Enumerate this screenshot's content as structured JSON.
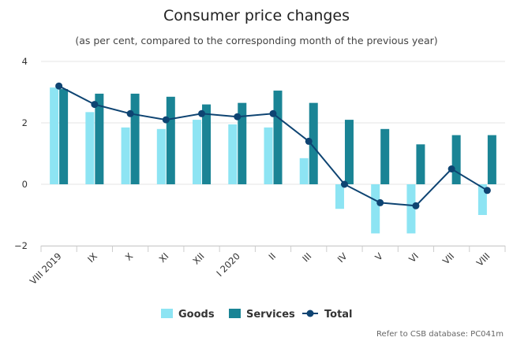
{
  "chart_data": {
    "type": "bar",
    "title": "Consumer price changes",
    "subtitle": "(as per cent, compared to the corresponding month of the previous year)",
    "categories": [
      "VIII 2019",
      "IX",
      "X",
      "XI",
      "XII",
      "I 2020",
      "II",
      "III",
      "IV",
      "V",
      "VI",
      "VII",
      "VIII"
    ],
    "series": [
      {
        "name": "Goods",
        "kind": "bar",
        "color": "#8de4f3",
        "values": [
          3.15,
          2.35,
          1.85,
          1.8,
          2.1,
          1.95,
          1.85,
          0.85,
          -0.8,
          -1.6,
          -1.6,
          0.0,
          -1.0
        ]
      },
      {
        "name": "Services",
        "kind": "bar",
        "color": "#1a8495",
        "values": [
          3.1,
          2.95,
          2.95,
          2.85,
          2.6,
          2.65,
          3.05,
          2.65,
          2.1,
          1.8,
          1.3,
          1.6,
          1.6
        ]
      },
      {
        "name": "Total",
        "kind": "line",
        "color": "#0e4472",
        "values": [
          3.2,
          2.6,
          2.3,
          2.1,
          2.3,
          2.2,
          2.3,
          1.4,
          0.0,
          -0.6,
          -0.7,
          0.5,
          -0.2
        ]
      }
    ],
    "ylim": [
      -2,
      4
    ],
    "yticks": [
      "4",
      "2",
      "0",
      "−2"
    ],
    "ytick_values": [
      4,
      2,
      0,
      -2
    ],
    "grid": true,
    "legend_position": "bottom"
  },
  "credit": "Refer to CSB database: PC041m"
}
